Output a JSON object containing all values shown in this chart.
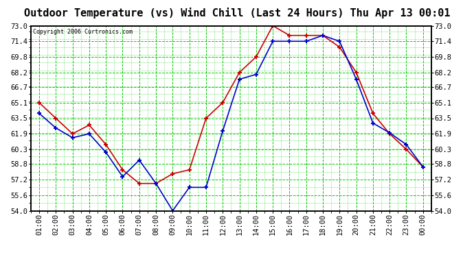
{
  "title": "Outdoor Temperature (vs) Wind Chill (Last 24 Hours) Thu Apr 13 00:01",
  "copyright": "Copyright 2006 Curtronics.com",
  "x_labels": [
    "01:00",
    "02:00",
    "03:00",
    "04:00",
    "05:00",
    "06:00",
    "07:00",
    "08:00",
    "09:00",
    "10:00",
    "11:00",
    "12:00",
    "13:00",
    "14:00",
    "15:00",
    "16:00",
    "17:00",
    "18:00",
    "19:00",
    "20:00",
    "21:00",
    "22:00",
    "23:00",
    "00:00"
  ],
  "y_min": 54.0,
  "y_max": 73.0,
  "y_ticks": [
    54.0,
    55.6,
    57.2,
    58.8,
    60.3,
    61.9,
    63.5,
    65.1,
    66.7,
    68.2,
    69.8,
    71.4,
    73.0
  ],
  "temp_red": [
    65.1,
    63.5,
    61.9,
    62.8,
    60.8,
    58.2,
    56.8,
    56.8,
    57.8,
    58.2,
    63.5,
    65.1,
    68.2,
    69.8,
    73.0,
    72.0,
    72.0,
    72.0,
    70.8,
    68.2,
    64.0,
    61.9,
    60.3,
    58.5
  ],
  "wind_blue": [
    64.0,
    62.5,
    61.5,
    61.9,
    60.0,
    57.5,
    59.2,
    56.8,
    54.0,
    56.4,
    56.4,
    62.2,
    67.5,
    68.0,
    71.4,
    71.4,
    71.4,
    72.0,
    71.4,
    67.5,
    63.0,
    62.0,
    60.8,
    58.5
  ],
  "bg_color": "#ffffff",
  "grid_color": "#00cc00",
  "line_color_red": "#cc0000",
  "line_color_blue": "#0000cc",
  "border_color": "#000000",
  "title_fontsize": 11,
  "tick_fontsize": 7.5
}
